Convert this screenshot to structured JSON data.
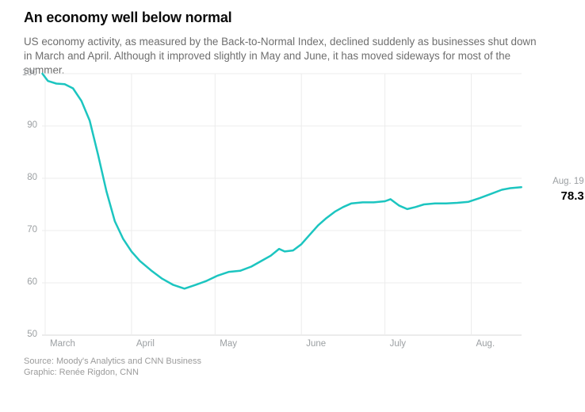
{
  "header": {
    "title": "An economy well below normal",
    "subtitle": "US economy activity, as measured by the Back-to-Normal Index, declined suddenly as businesses shut down in March and April. Although it improved slightly in May and June, it has moved sideways for most of the summer."
  },
  "chart_data": {
    "type": "line",
    "title": "An economy well below normal",
    "series_name": "Back-to-Normal Index",
    "ylim": [
      50,
      100
    ],
    "yticks": [
      100,
      90,
      80,
      70,
      60,
      50
    ],
    "xticks": [
      {
        "label": "March",
        "date": "2020-03-01"
      },
      {
        "label": "April",
        "date": "2020-04-01"
      },
      {
        "label": "May",
        "date": "2020-05-01"
      },
      {
        "label": "June",
        "date": "2020-06-01"
      },
      {
        "label": "July",
        "date": "2020-07-01"
      },
      {
        "label": "Aug.",
        "date": "2020-08-01"
      }
    ],
    "grid": true,
    "legend_position": "none",
    "line_color": "#1cc5c0",
    "grid_color": "#ececec",
    "axis_color": "#d9d9d9",
    "points": [
      {
        "date": "2020-02-29",
        "value": 100.0
      },
      {
        "date": "2020-03-02",
        "value": 98.6
      },
      {
        "date": "2020-03-05",
        "value": 98.1
      },
      {
        "date": "2020-03-08",
        "value": 98.0
      },
      {
        "date": "2020-03-11",
        "value": 97.2
      },
      {
        "date": "2020-03-14",
        "value": 94.8
      },
      {
        "date": "2020-03-17",
        "value": 91.0
      },
      {
        "date": "2020-03-20",
        "value": 84.5
      },
      {
        "date": "2020-03-23",
        "value": 77.5
      },
      {
        "date": "2020-03-26",
        "value": 71.8
      },
      {
        "date": "2020-03-29",
        "value": 68.4
      },
      {
        "date": "2020-04-01",
        "value": 66.0
      },
      {
        "date": "2020-04-04",
        "value": 64.2
      },
      {
        "date": "2020-04-08",
        "value": 62.4
      },
      {
        "date": "2020-04-12",
        "value": 60.8
      },
      {
        "date": "2020-04-16",
        "value": 59.6
      },
      {
        "date": "2020-04-20",
        "value": 58.9
      },
      {
        "date": "2020-04-24",
        "value": 59.6
      },
      {
        "date": "2020-04-28",
        "value": 60.4
      },
      {
        "date": "2020-05-02",
        "value": 61.4
      },
      {
        "date": "2020-05-06",
        "value": 62.1
      },
      {
        "date": "2020-05-10",
        "value": 62.3
      },
      {
        "date": "2020-05-14",
        "value": 63.1
      },
      {
        "date": "2020-05-18",
        "value": 64.3
      },
      {
        "date": "2020-05-21",
        "value": 65.2
      },
      {
        "date": "2020-05-24",
        "value": 66.5
      },
      {
        "date": "2020-05-26",
        "value": 66.0
      },
      {
        "date": "2020-05-29",
        "value": 66.2
      },
      {
        "date": "2020-06-01",
        "value": 67.4
      },
      {
        "date": "2020-06-04",
        "value": 69.2
      },
      {
        "date": "2020-06-07",
        "value": 71.0
      },
      {
        "date": "2020-06-10",
        "value": 72.4
      },
      {
        "date": "2020-06-13",
        "value": 73.6
      },
      {
        "date": "2020-06-16",
        "value": 74.5
      },
      {
        "date": "2020-06-19",
        "value": 75.2
      },
      {
        "date": "2020-06-23",
        "value": 75.4
      },
      {
        "date": "2020-06-27",
        "value": 75.4
      },
      {
        "date": "2020-07-01",
        "value": 75.6
      },
      {
        "date": "2020-07-03",
        "value": 76.0
      },
      {
        "date": "2020-07-06",
        "value": 74.8
      },
      {
        "date": "2020-07-09",
        "value": 74.1
      },
      {
        "date": "2020-07-12",
        "value": 74.5
      },
      {
        "date": "2020-07-15",
        "value": 75.0
      },
      {
        "date": "2020-07-19",
        "value": 75.2
      },
      {
        "date": "2020-07-23",
        "value": 75.2
      },
      {
        "date": "2020-07-27",
        "value": 75.3
      },
      {
        "date": "2020-07-31",
        "value": 75.5
      },
      {
        "date": "2020-08-04",
        "value": 76.2
      },
      {
        "date": "2020-08-08",
        "value": 77.0
      },
      {
        "date": "2020-08-12",
        "value": 77.8
      },
      {
        "date": "2020-08-15",
        "value": 78.1
      },
      {
        "date": "2020-08-19",
        "value": 78.3
      }
    ],
    "annotation": {
      "date_label": "Aug. 19",
      "value_label": "78.3"
    }
  },
  "footer": {
    "source": "Source: Moody's Analytics and CNN Business",
    "credit": "Graphic: Renée Rigdon, CNN"
  }
}
